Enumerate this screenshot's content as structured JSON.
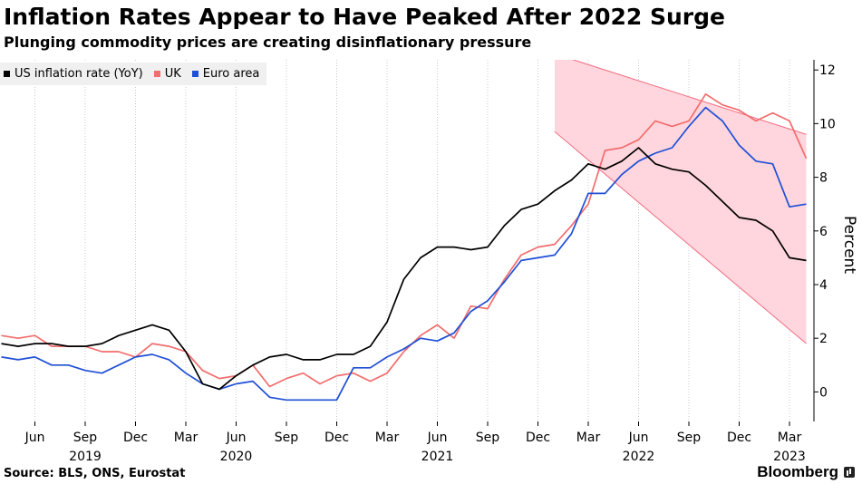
{
  "chart_data": {
    "type": "line",
    "title": "Inflation Rates Appear to Have Peaked After 2022 Surge",
    "subtitle": "Plunging commodity prices are creating disinflationary pressure",
    "ylabel": "Percent",
    "ylim": [
      -1,
      12
    ],
    "y_ticks": [
      0,
      2,
      4,
      6,
      8,
      10,
      12
    ],
    "y_axis_side": "right",
    "grid": "vertical dotted",
    "legend": "top-left",
    "x_tick_labels": [
      {
        "month": "2019-06",
        "label": "Jun"
      },
      {
        "month": "2019-09",
        "label": "Sep"
      },
      {
        "month": "2019-12",
        "label": "Dec"
      },
      {
        "month": "2020-03",
        "label": "Mar"
      },
      {
        "month": "2020-06",
        "label": "Jun"
      },
      {
        "month": "2020-09",
        "label": "Sep"
      },
      {
        "month": "2020-12",
        "label": "Dec"
      },
      {
        "month": "2021-03",
        "label": "Mar"
      },
      {
        "month": "2021-06",
        "label": "Jun"
      },
      {
        "month": "2021-09",
        "label": "Sep"
      },
      {
        "month": "2021-12",
        "label": "Dec"
      },
      {
        "month": "2022-03",
        "label": "Mar"
      },
      {
        "month": "2022-06",
        "label": "Jun"
      },
      {
        "month": "2022-09",
        "label": "Sep"
      },
      {
        "month": "2022-12",
        "label": "Dec"
      },
      {
        "month": "2023-03",
        "label": "Mar"
      }
    ],
    "x_year_labels": [
      {
        "month": "2019-09",
        "label": "2019"
      },
      {
        "month": "2020-06",
        "label": "2020"
      },
      {
        "month": "2021-06",
        "label": "2021"
      },
      {
        "month": "2022-06",
        "label": "2022"
      },
      {
        "month": "2023-03",
        "label": "2023"
      }
    ],
    "shaded_region": {
      "upper": [
        {
          "x": "2022-01",
          "y": 12.6
        },
        {
          "x": "2023-04",
          "y": 9.6
        }
      ],
      "lower": [
        {
          "x": "2022-01",
          "y": 9.7
        },
        {
          "x": "2023-04",
          "y": 1.8
        }
      ],
      "color": "#ffd6dd",
      "edge_color": "#f26d82"
    },
    "start_month": "2019-04",
    "series": [
      {
        "name": "US inflation rate (YoY)",
        "color": "#000000",
        "values": [
          1.8,
          1.7,
          1.8,
          1.8,
          1.7,
          1.7,
          1.8,
          2.1,
          2.3,
          2.5,
          2.3,
          1.5,
          0.3,
          0.1,
          0.6,
          1.0,
          1.3,
          1.4,
          1.2,
          1.2,
          1.4,
          1.4,
          1.7,
          2.6,
          4.2,
          5.0,
          5.4,
          5.4,
          5.3,
          5.4,
          6.2,
          6.8,
          7.0,
          7.5,
          7.9,
          8.5,
          8.3,
          8.6,
          9.1,
          8.5,
          8.3,
          8.2,
          7.7,
          7.1,
          6.5,
          6.4,
          6.0,
          5.0,
          4.9
        ]
      },
      {
        "name": "UK",
        "color": "#f26d6d",
        "values": [
          2.1,
          2.0,
          2.1,
          1.7,
          1.7,
          1.7,
          1.5,
          1.5,
          1.3,
          1.8,
          1.7,
          1.5,
          0.8,
          0.5,
          0.6,
          1.0,
          0.2,
          0.5,
          0.7,
          0.3,
          0.6,
          0.7,
          0.4,
          0.7,
          1.5,
          2.1,
          2.5,
          2.0,
          3.2,
          3.1,
          4.2,
          5.1,
          5.4,
          5.5,
          6.2,
          7.0,
          9.0,
          9.1,
          9.4,
          10.1,
          9.9,
          10.1,
          11.1,
          10.7,
          10.5,
          10.1,
          10.4,
          10.1,
          8.7
        ]
      },
      {
        "name": "Euro area",
        "color": "#1f4fd6",
        "values": [
          1.3,
          1.2,
          1.3,
          1.0,
          1.0,
          0.8,
          0.7,
          1.0,
          1.3,
          1.4,
          1.2,
          0.7,
          0.3,
          0.1,
          0.3,
          0.4,
          -0.2,
          -0.3,
          -0.3,
          -0.3,
          -0.3,
          0.9,
          0.9,
          1.3,
          1.6,
          2.0,
          1.9,
          2.2,
          3.0,
          3.4,
          4.1,
          4.9,
          5.0,
          5.1,
          5.9,
          7.4,
          7.4,
          8.1,
          8.6,
          8.9,
          9.1,
          9.9,
          10.6,
          10.1,
          9.2,
          8.6,
          8.5,
          6.9,
          7.0
        ]
      }
    ]
  },
  "source": "Source: BLS, ONS, Eurostat",
  "brand": "Bloomberg",
  "colors": {
    "legend_bg": "#f0f0f0"
  }
}
